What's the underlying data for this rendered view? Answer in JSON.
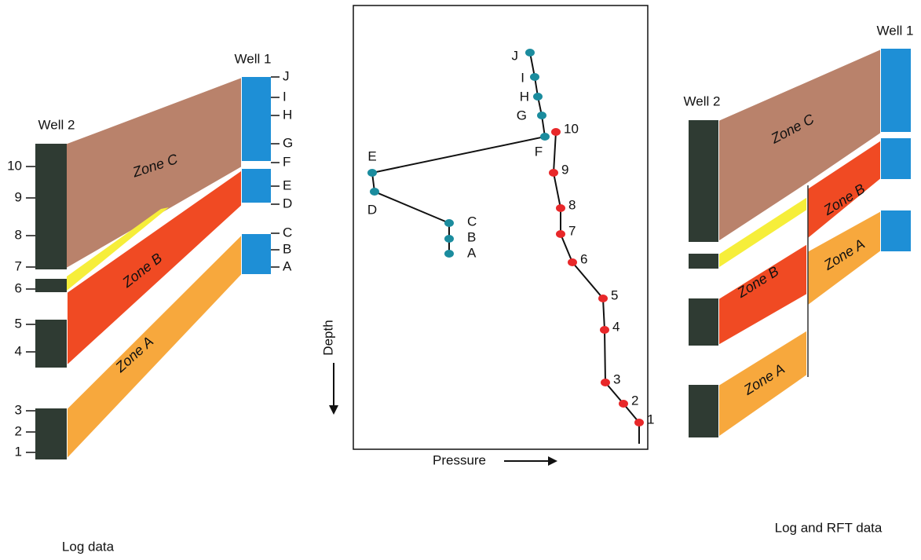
{
  "left_panel": {
    "well_2": "Well 2",
    "well_1": "Well 1",
    "zones": [
      "Zone C",
      "Zone B",
      "Zone A"
    ],
    "well_2_markers": [
      "1",
      "2",
      "3",
      "4",
      "5",
      "6",
      "7",
      "8",
      "9",
      "10"
    ],
    "well_1_markers": [
      "A",
      "B",
      "C",
      "D",
      "E",
      "F",
      "G",
      "H",
      "I",
      "J"
    ],
    "caption": "Log data"
  },
  "rft_plot": {
    "y_axis": "Depth",
    "x_axis": "Pressure",
    "well_1_points": [
      "A",
      "B",
      "C",
      "D",
      "E",
      "F",
      "G",
      "H",
      "I",
      "J"
    ],
    "well_2_points": [
      "1",
      "2",
      "3",
      "4",
      "5",
      "6",
      "7",
      "8",
      "9",
      "10"
    ]
  },
  "right_panel": {
    "well_2": "Well 2",
    "well_1": "Well 1",
    "zones": [
      "Zone C",
      "Zone B",
      "Zone A",
      "Zone B",
      "Zone A"
    ],
    "caption": "Log and RFT data"
  }
}
